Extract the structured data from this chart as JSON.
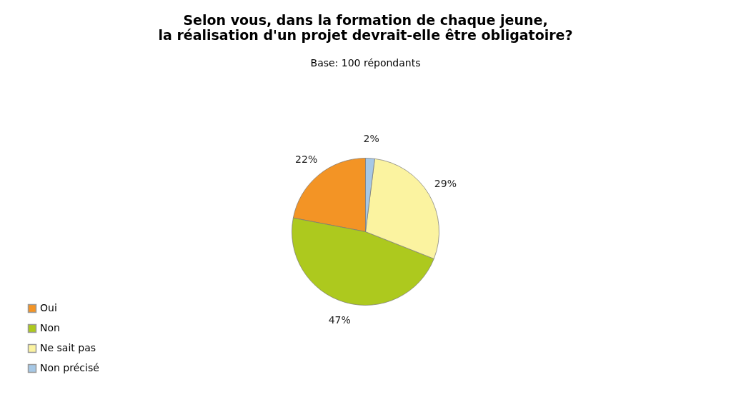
{
  "chart_data": {
    "type": "pie",
    "title": [
      "Selon vous, dans la formation de chaque jeune,",
      "la réalisation d'un projet devrait-elle être obligatoire?"
    ],
    "subtitle": "Base: 100 répondants",
    "categories": [
      "Oui",
      "Non",
      "Ne sait pas",
      "Non précisé"
    ],
    "values": [
      22,
      47,
      29,
      2
    ],
    "colors": [
      "#f39425",
      "#adc91e",
      "#fbf3a0",
      "#a6c8e6"
    ],
    "value_labels": [
      "22%",
      "47%",
      "29%",
      "2%"
    ],
    "legend": "bottom left"
  }
}
